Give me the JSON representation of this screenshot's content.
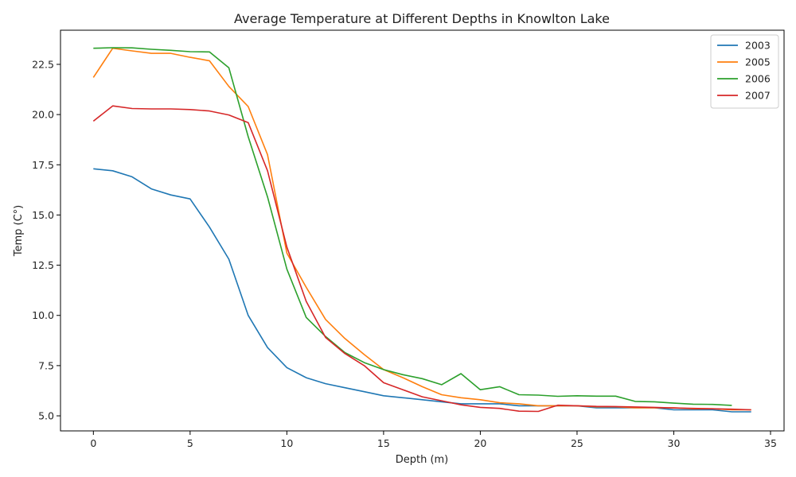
{
  "chart_data": {
    "type": "line",
    "title": "Average Temperature at Different Depths in Knowlton Lake",
    "xlabel": "Depth (m)",
    "ylabel": "Temp (C°)",
    "xlim": [
      -1.7,
      35.7
    ],
    "ylim": [
      4.25,
      24.2
    ],
    "xticks": [
      0,
      5,
      10,
      15,
      20,
      25,
      30,
      35
    ],
    "yticks": [
      5.0,
      7.5,
      10.0,
      12.5,
      15.0,
      17.5,
      20.0,
      22.5
    ],
    "ytick_labels": [
      "5.0",
      "7.5",
      "10.0",
      "12.5",
      "15.0",
      "17.5",
      "20.0",
      "22.5"
    ],
    "grid": false,
    "legend_position": "top-right",
    "series": [
      {
        "name": "2003",
        "color": "#1f77b4",
        "x": [
          0,
          1,
          2,
          3,
          4,
          5,
          6,
          7,
          8,
          9,
          10,
          11,
          12,
          13,
          14,
          15,
          16,
          17,
          18,
          19,
          20,
          21,
          22,
          23,
          24,
          25,
          26,
          27,
          28,
          29,
          30,
          31,
          32,
          33,
          34
        ],
        "y": [
          17.3,
          17.2,
          16.9,
          16.3,
          16.0,
          15.8,
          14.4,
          12.8,
          10.0,
          8.4,
          7.4,
          6.9,
          6.6,
          6.4,
          6.2,
          6.0,
          5.9,
          5.8,
          5.7,
          5.6,
          5.6,
          5.6,
          5.5,
          5.5,
          5.5,
          5.5,
          5.4,
          5.4,
          5.4,
          5.4,
          5.3,
          5.3,
          5.3,
          5.2,
          5.2
        ]
      },
      {
        "name": "2005",
        "color": "#ff7f0e",
        "x": [
          0,
          1,
          2,
          3,
          4,
          5,
          6,
          7,
          8,
          9,
          10,
          11,
          12,
          13,
          14,
          15,
          16,
          17,
          18,
          19,
          20,
          21,
          22,
          23,
          24,
          25,
          26,
          27,
          28,
          29,
          30,
          31,
          32,
          33,
          34
        ],
        "y": [
          21.85,
          23.3,
          23.17,
          23.05,
          23.05,
          22.85,
          22.68,
          21.4,
          20.4,
          18.0,
          13.1,
          11.4,
          9.8,
          8.85,
          8.05,
          7.3,
          6.9,
          6.45,
          6.05,
          5.9,
          5.8,
          5.65,
          5.6,
          5.5,
          5.5,
          5.5,
          5.45,
          5.45,
          5.4,
          5.4,
          5.4,
          5.35,
          5.35,
          5.3,
          5.3
        ]
      },
      {
        "name": "2006",
        "color": "#2ca02c",
        "x": [
          0,
          1,
          2,
          3,
          4,
          5,
          6,
          7,
          8,
          9,
          10,
          11,
          12,
          13,
          14,
          15,
          16,
          17,
          18,
          19,
          20,
          21,
          22,
          23,
          24,
          25,
          26,
          27,
          28,
          29,
          30,
          31,
          32,
          33
        ],
        "y": [
          23.3,
          23.33,
          23.32,
          23.25,
          23.2,
          23.13,
          23.12,
          22.33,
          18.9,
          15.9,
          12.3,
          9.9,
          8.95,
          8.15,
          7.65,
          7.3,
          7.05,
          6.85,
          6.55,
          7.1,
          6.3,
          6.45,
          6.05,
          6.03,
          5.97,
          6.0,
          5.98,
          5.98,
          5.72,
          5.7,
          5.63,
          5.58,
          5.57,
          5.52
        ]
      },
      {
        "name": "2007",
        "color": "#d62728",
        "x": [
          0,
          1,
          2,
          3,
          4,
          5,
          6,
          7,
          8,
          9,
          10,
          11,
          12,
          13,
          14,
          15,
          16,
          17,
          18,
          19,
          20,
          21,
          22,
          23,
          24,
          25,
          26,
          27,
          28,
          29,
          30,
          31,
          32,
          33,
          34
        ],
        "y": [
          19.67,
          20.43,
          20.3,
          20.28,
          20.28,
          20.25,
          20.18,
          19.98,
          19.6,
          17.2,
          13.4,
          10.7,
          8.9,
          8.1,
          7.5,
          6.65,
          6.3,
          5.95,
          5.75,
          5.55,
          5.42,
          5.37,
          5.23,
          5.22,
          5.53,
          5.5,
          5.47,
          5.46,
          5.44,
          5.42,
          5.39,
          5.37,
          5.35,
          5.33,
          5.3
        ]
      }
    ]
  }
}
